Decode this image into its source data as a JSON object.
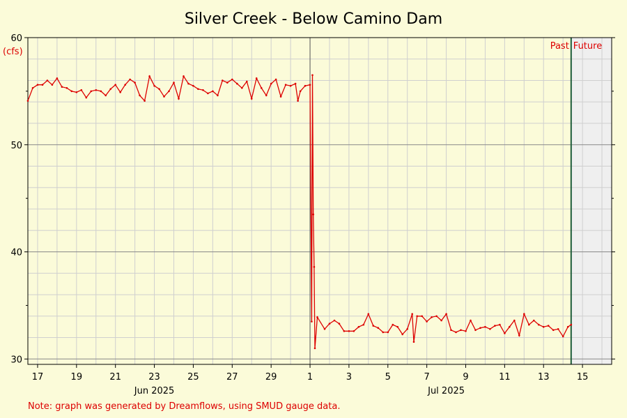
{
  "chart_data": {
    "type": "line",
    "title": "Silver Creek - Below Camino Dam",
    "ylabel": "(cfs)",
    "xlabel": "",
    "ylim": [
      29.5,
      60
    ],
    "xlim": [
      "2025-06-16 12:00",
      "2025-07-16 12:00"
    ],
    "y_ticks": [
      30,
      40,
      50,
      60
    ],
    "x_ticks": [
      {
        "date": "2025-06-17",
        "label": "17"
      },
      {
        "date": "2025-06-19",
        "label": "19"
      },
      {
        "date": "2025-06-21",
        "label": "21"
      },
      {
        "date": "2025-06-23",
        "label": "23"
      },
      {
        "date": "2025-06-25",
        "label": "25"
      },
      {
        "date": "2025-06-27",
        "label": "27"
      },
      {
        "date": "2025-06-29",
        "label": "29"
      },
      {
        "date": "2025-07-01",
        "label": "1"
      },
      {
        "date": "2025-07-03",
        "label": "3"
      },
      {
        "date": "2025-07-05",
        "label": "5"
      },
      {
        "date": "2025-07-07",
        "label": "7"
      },
      {
        "date": "2025-07-09",
        "label": "9"
      },
      {
        "date": "2025-07-11",
        "label": "11"
      },
      {
        "date": "2025-07-13",
        "label": "13"
      },
      {
        "date": "2025-07-15",
        "label": "15"
      }
    ],
    "month_labels": [
      {
        "date": "2025-06-23",
        "label": "Jun 2025"
      },
      {
        "date": "2025-07-08",
        "label": "Jul 2025"
      }
    ],
    "month_boundary": "2025-07-01",
    "now": "2025-07-14 10:00",
    "past_label": "Past",
    "future_label": "Future",
    "grid": true,
    "series_color": "#dd0000",
    "note": "Note: graph was generated by Dreamflows, using SMUD gauge data.",
    "series": [
      {
        "values": [
          [
            "2025-06-16 12:00",
            54.1
          ],
          [
            "2025-06-16 18:00",
            55.3
          ],
          [
            "2025-06-17 00:00",
            55.6
          ],
          [
            "2025-06-17 06:00",
            55.6
          ],
          [
            "2025-06-17 12:00",
            56.0
          ],
          [
            "2025-06-17 18:00",
            55.6
          ],
          [
            "2025-06-18 00:00",
            56.2
          ],
          [
            "2025-06-18 06:00",
            55.4
          ],
          [
            "2025-06-18 12:00",
            55.3
          ],
          [
            "2025-06-18 18:00",
            55.0
          ],
          [
            "2025-06-19 00:00",
            54.9
          ],
          [
            "2025-06-19 06:00",
            55.1
          ],
          [
            "2025-06-19 12:00",
            54.4
          ],
          [
            "2025-06-19 18:00",
            55.0
          ],
          [
            "2025-06-20 00:00",
            55.1
          ],
          [
            "2025-06-20 06:00",
            55.0
          ],
          [
            "2025-06-20 12:00",
            54.6
          ],
          [
            "2025-06-20 18:00",
            55.2
          ],
          [
            "2025-06-21 00:00",
            55.6
          ],
          [
            "2025-06-21 06:00",
            54.9
          ],
          [
            "2025-06-21 12:00",
            55.6
          ],
          [
            "2025-06-21 18:00",
            56.1
          ],
          [
            "2025-06-22 00:00",
            55.8
          ],
          [
            "2025-06-22 06:00",
            54.6
          ],
          [
            "2025-06-22 12:00",
            54.1
          ],
          [
            "2025-06-22 18:00",
            56.4
          ],
          [
            "2025-06-23 00:00",
            55.5
          ],
          [
            "2025-06-23 06:00",
            55.2
          ],
          [
            "2025-06-23 12:00",
            54.5
          ],
          [
            "2025-06-23 18:00",
            55.0
          ],
          [
            "2025-06-24 00:00",
            55.8
          ],
          [
            "2025-06-24 06:00",
            54.3
          ],
          [
            "2025-06-24 12:00",
            56.4
          ],
          [
            "2025-06-24 18:00",
            55.7
          ],
          [
            "2025-06-25 00:00",
            55.5
          ],
          [
            "2025-06-25 06:00",
            55.2
          ],
          [
            "2025-06-25 12:00",
            55.1
          ],
          [
            "2025-06-25 18:00",
            54.8
          ],
          [
            "2025-06-26 00:00",
            55.0
          ],
          [
            "2025-06-26 06:00",
            54.6
          ],
          [
            "2025-06-26 12:00",
            56.0
          ],
          [
            "2025-06-26 18:00",
            55.8
          ],
          [
            "2025-06-27 00:00",
            56.1
          ],
          [
            "2025-06-27 06:00",
            55.7
          ],
          [
            "2025-06-27 12:00",
            55.3
          ],
          [
            "2025-06-27 18:00",
            55.9
          ],
          [
            "2025-06-28 00:00",
            54.3
          ],
          [
            "2025-06-28 06:00",
            56.2
          ],
          [
            "2025-06-28 12:00",
            55.3
          ],
          [
            "2025-06-28 18:00",
            54.6
          ],
          [
            "2025-06-29 00:00",
            55.7
          ],
          [
            "2025-06-29 06:00",
            56.1
          ],
          [
            "2025-06-29 12:00",
            54.5
          ],
          [
            "2025-06-29 18:00",
            55.6
          ],
          [
            "2025-06-30 00:00",
            55.5
          ],
          [
            "2025-06-30 06:00",
            55.7
          ],
          [
            "2025-06-30 09:00",
            54.1
          ],
          [
            "2025-06-30 12:00",
            55.0
          ],
          [
            "2025-06-30 18:00",
            55.5
          ],
          [
            "2025-07-01 00:00",
            55.6
          ],
          [
            "2025-07-01 02:00",
            33.5
          ],
          [
            "2025-07-01 03:00",
            56.5
          ],
          [
            "2025-07-01 04:00",
            43.5
          ],
          [
            "2025-07-01 05:00",
            38.6
          ],
          [
            "2025-07-01 06:00",
            31.0
          ],
          [
            "2025-07-01 09:00",
            33.9
          ],
          [
            "2025-07-01 18:00",
            32.8
          ],
          [
            "2025-07-02 00:00",
            33.3
          ],
          [
            "2025-07-02 06:00",
            33.6
          ],
          [
            "2025-07-02 12:00",
            33.3
          ],
          [
            "2025-07-02 18:00",
            32.6
          ],
          [
            "2025-07-03 00:00",
            32.6
          ],
          [
            "2025-07-03 06:00",
            32.6
          ],
          [
            "2025-07-03 12:00",
            33.0
          ],
          [
            "2025-07-03 18:00",
            33.2
          ],
          [
            "2025-07-04 00:00",
            34.2
          ],
          [
            "2025-07-04 06:00",
            33.1
          ],
          [
            "2025-07-04 12:00",
            32.9
          ],
          [
            "2025-07-04 18:00",
            32.5
          ],
          [
            "2025-07-05 00:00",
            32.5
          ],
          [
            "2025-07-05 06:00",
            33.2
          ],
          [
            "2025-07-05 12:00",
            33.0
          ],
          [
            "2025-07-05 18:00",
            32.3
          ],
          [
            "2025-07-06 00:00",
            32.8
          ],
          [
            "2025-07-06 06:00",
            34.2
          ],
          [
            "2025-07-06 08:00",
            31.6
          ],
          [
            "2025-07-06 12:00",
            34.0
          ],
          [
            "2025-07-06 18:00",
            34.0
          ],
          [
            "2025-07-07 00:00",
            33.5
          ],
          [
            "2025-07-07 06:00",
            33.9
          ],
          [
            "2025-07-07 12:00",
            34.0
          ],
          [
            "2025-07-07 18:00",
            33.6
          ],
          [
            "2025-07-08 00:00",
            34.2
          ],
          [
            "2025-07-08 06:00",
            32.7
          ],
          [
            "2025-07-08 12:00",
            32.5
          ],
          [
            "2025-07-08 18:00",
            32.7
          ],
          [
            "2025-07-09 00:00",
            32.6
          ],
          [
            "2025-07-09 06:00",
            33.6
          ],
          [
            "2025-07-09 12:00",
            32.7
          ],
          [
            "2025-07-09 18:00",
            32.9
          ],
          [
            "2025-07-10 00:00",
            33.0
          ],
          [
            "2025-07-10 06:00",
            32.8
          ],
          [
            "2025-07-10 12:00",
            33.1
          ],
          [
            "2025-07-10 18:00",
            33.2
          ],
          [
            "2025-07-11 00:00",
            32.4
          ],
          [
            "2025-07-11 06:00",
            33.0
          ],
          [
            "2025-07-11 12:00",
            33.6
          ],
          [
            "2025-07-11 18:00",
            32.2
          ],
          [
            "2025-07-12 00:00",
            34.2
          ],
          [
            "2025-07-12 06:00",
            33.2
          ],
          [
            "2025-07-12 12:00",
            33.6
          ],
          [
            "2025-07-12 18:00",
            33.2
          ],
          [
            "2025-07-13 00:00",
            33.0
          ],
          [
            "2025-07-13 06:00",
            33.1
          ],
          [
            "2025-07-13 12:00",
            32.7
          ],
          [
            "2025-07-13 18:00",
            32.8
          ],
          [
            "2025-07-14 00:00",
            32.1
          ],
          [
            "2025-07-14 06:00",
            33.0
          ],
          [
            "2025-07-14 10:00",
            33.2
          ]
        ]
      }
    ]
  }
}
